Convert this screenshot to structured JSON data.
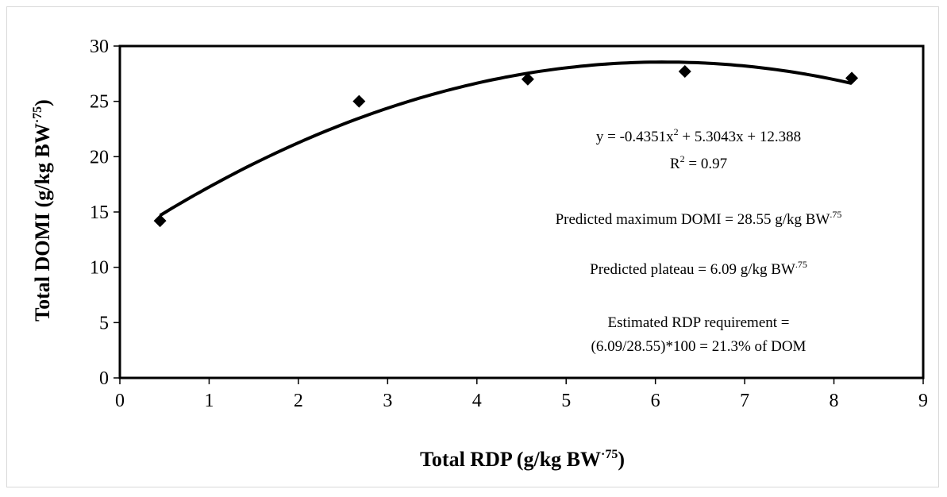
{
  "chart_data": {
    "type": "scatter",
    "xlabel": {
      "main": "Total RDP (g/kg BW",
      "sup": "·75",
      "close": ")"
    },
    "ylabel": {
      "main": "Total DOMI (g/kg BW",
      "sup": "·75",
      "close": ")"
    },
    "xlim": [
      0,
      9
    ],
    "ylim": [
      0,
      30
    ],
    "x_ticks": [
      "0",
      "1",
      "2",
      "3",
      "4",
      "5",
      "6",
      "7",
      "8",
      "9"
    ],
    "y_ticks": [
      "0",
      "5",
      "10",
      "15",
      "20",
      "25",
      "30"
    ],
    "grid": false,
    "series": [
      {
        "x": [
          0.45,
          2.68,
          4.57,
          6.33,
          8.2
        ],
        "y": [
          14.2,
          25.0,
          27.0,
          27.7,
          27.1
        ],
        "marker": "diamond",
        "color": "#000000"
      }
    ],
    "trendline": {
      "type": "polynomial",
      "coefficients": {
        "a": -0.4351,
        "b": 5.3043,
        "c": 12.388
      },
      "x_range": [
        0.45,
        8.2
      ],
      "color": "#000000"
    },
    "annotations": {
      "equation": {
        "pre": "y = -0.4351x",
        "sup": "2",
        "post": " + 5.3043x + 12.388"
      },
      "r2": {
        "pre": "R",
        "sup": "2",
        "post": " = 0.97"
      },
      "max_domi": {
        "pre": "Predicted maximum DOMI = 28.55 g/kg BW",
        "sup": ".75"
      },
      "plateau": {
        "pre": "Predicted plateau = 6.09 g/kg BW",
        "sup": ".75"
      },
      "req_line1": "Estimated RDP requirement =",
      "req_line2": "(6.09/28.55)*100 = 21.3% of DOM"
    }
  }
}
